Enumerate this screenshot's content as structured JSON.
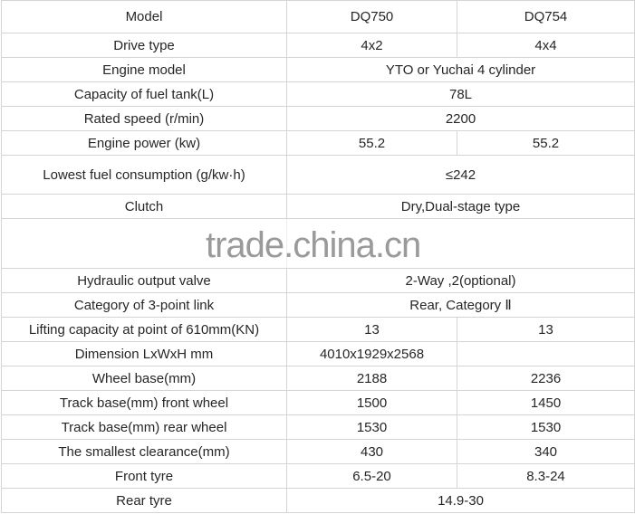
{
  "header": {
    "label": "Model",
    "models": [
      "DQ750",
      "DQ754"
    ]
  },
  "rows_top": [
    {
      "label": "Drive type",
      "values": [
        "4x2",
        "4x4"
      ]
    },
    {
      "label": "Engine model",
      "merged": "YTO or Yuchai 4 cylinder"
    },
    {
      "label": "Capacity of fuel tank(L)",
      "merged": "78L"
    },
    {
      "label": "Rated speed (r/min)",
      "merged": "2200"
    },
    {
      "label": "Engine power (kw)",
      "values": [
        "55.2",
        "55.2"
      ]
    },
    {
      "label": "Lowest fuel consumption (g/kw·h)",
      "merged": "≤242"
    },
    {
      "label": "Clutch",
      "merged": "Dry,Dual-stage type"
    }
  ],
  "watermark": "trade.china.cn",
  "rows_bottom": [
    {
      "label": "Hydraulic output valve",
      "merged": "2-Way ,2(optional)"
    },
    {
      "label": "Category of 3-point link",
      "merged": "Rear, Category Ⅱ"
    },
    {
      "label": "Lifting capacity at point of 610mm(KN)",
      "values": [
        "13",
        "13"
      ]
    },
    {
      "label": "Dimension LxWxH mm",
      "values": [
        "4010x1929x2568",
        ""
      ]
    },
    {
      "label": "Wheel base(mm)",
      "values": [
        "2188",
        "2236"
      ]
    },
    {
      "label": "Track base(mm) front wheel",
      "values": [
        "1500",
        "1450"
      ]
    },
    {
      "label": "Track base(mm) rear wheel",
      "values": [
        "1530",
        "1530"
      ]
    },
    {
      "label": "The smallest clearance(mm)",
      "values": [
        "430",
        "340"
      ]
    },
    {
      "label": "Front tyre",
      "values": [
        "6.5-20",
        "8.3-24"
      ]
    },
    {
      "label": "Rear tyre",
      "merged": "14.9-30"
    }
  ]
}
